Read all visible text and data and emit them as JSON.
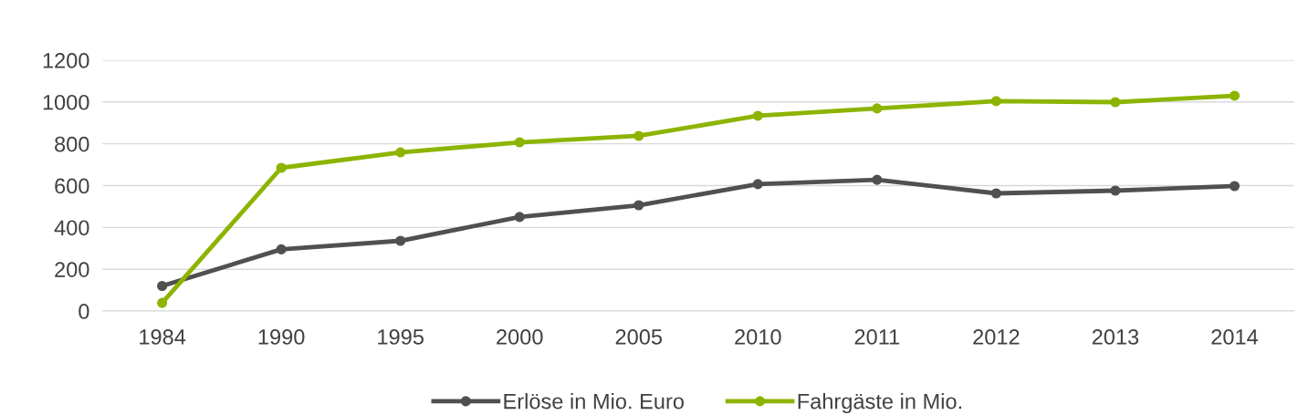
{
  "chart_data": {
    "type": "line",
    "categories": [
      "1984",
      "1990",
      "1995",
      "2000",
      "2005",
      "2010",
      "2011",
      "2012",
      "2013",
      "2014"
    ],
    "series": [
      {
        "name": "Erlöse in Mio. Euro",
        "color": "#505050",
        "values": [
          120,
          295,
          336,
          450,
          506,
          607,
          628,
          563,
          576,
          598
        ]
      },
      {
        "name": "Fahrgäste in Mio.",
        "color": "#8cb400",
        "values": [
          39,
          685,
          759,
          807,
          838,
          934,
          969,
          1004,
          999,
          1030
        ]
      }
    ],
    "ylim": [
      0,
      1200
    ],
    "yticks": [
      0,
      200,
      400,
      600,
      800,
      1000,
      1200
    ],
    "grid": "y",
    "legend": "bottom",
    "marker": "circle",
    "line_style": "solid"
  }
}
